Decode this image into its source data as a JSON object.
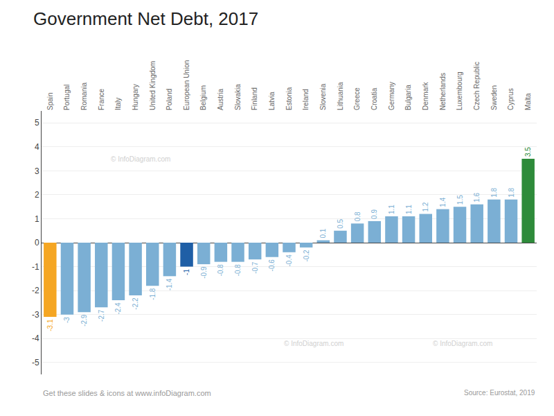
{
  "chart_data": {
    "type": "bar",
    "title": "Government Net Debt, 2017",
    "categories": [
      "Spain",
      "Portugal",
      "Romania",
      "France",
      "Italy",
      "Hungary",
      "United Kingdom",
      "Poland",
      "European Union",
      "Belgium",
      "Austria",
      "Slovakia",
      "Finland",
      "Latvia",
      "Estonia",
      "Ireland",
      "Slovenia",
      "Lithuania",
      "Greece",
      "Croatia",
      "Germany",
      "Bulgaria",
      "Denmark",
      "Netherlands",
      "Luxembourg",
      "Czech Republic",
      "Sweden",
      "Cyprus",
      "Malta"
    ],
    "values": [
      -3.1,
      -3.0,
      -2.9,
      -2.7,
      -2.4,
      -2.2,
      -1.8,
      -1.4,
      -1.0,
      -0.9,
      -0.8,
      -0.8,
      -0.7,
      -0.6,
      -0.4,
      -0.2,
      0.1,
      0.5,
      0.8,
      0.9,
      1.1,
      1.1,
      1.2,
      1.4,
      1.5,
      1.6,
      1.8,
      1.8,
      3.5
    ],
    "colors": [
      "#F5A623",
      "#7BAFD4",
      "#7BAFD4",
      "#7BAFD4",
      "#7BAFD4",
      "#7BAFD4",
      "#7BAFD4",
      "#7BAFD4",
      "#1F5FA6",
      "#7BAFD4",
      "#7BAFD4",
      "#7BAFD4",
      "#7BAFD4",
      "#7BAFD4",
      "#7BAFD4",
      "#7BAFD4",
      "#7BAFD4",
      "#7BAFD4",
      "#7BAFD4",
      "#7BAFD4",
      "#7BAFD4",
      "#7BAFD4",
      "#7BAFD4",
      "#7BAFD4",
      "#7BAFD4",
      "#7BAFD4",
      "#7BAFD4",
      "#7BAFD4",
      "#2E8B3A"
    ],
    "ylim": [
      -5.5,
      5.5
    ],
    "yticks": [
      -5,
      -4,
      -3,
      -2,
      -1,
      0,
      1,
      2,
      3,
      4,
      5
    ],
    "grid": true,
    "data_labels": true,
    "annotations": [
      "Get these slides & icons at www.infoDiagram.com",
      "Source: Eurostat, 2019",
      "© InfoDiagram.com",
      "© InfoDiagram.com",
      "© InfoDiagram.com"
    ]
  }
}
